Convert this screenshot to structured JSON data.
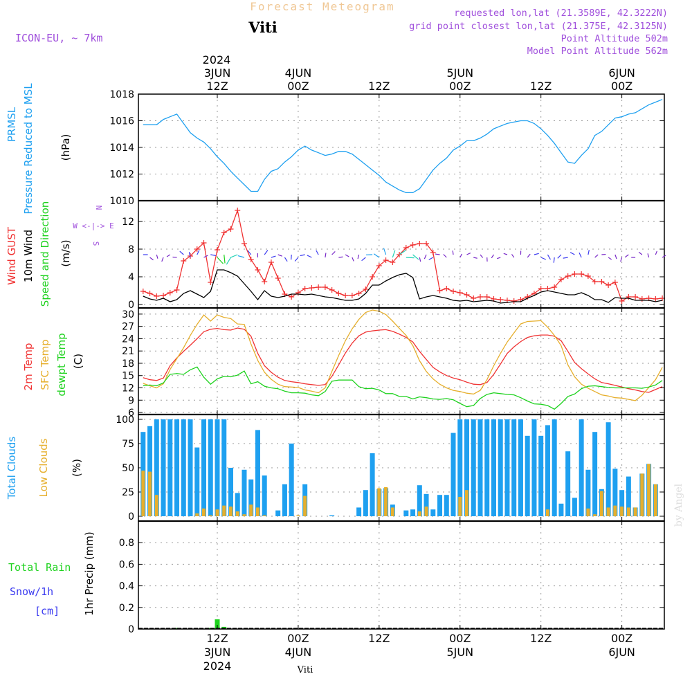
{
  "header": {
    "title": "Forecast Meteogram",
    "location": "Viti",
    "model": "ICON-EU, ~ 7km",
    "requested": "requested lon,lat (21.3589E, 42.3222N)",
    "grid_point": "grid point closest lon,lat (21.375E, 42.3125N)",
    "point_altitude": "Point Altitude 502m",
    "model_altitude": "Model Point Altitude 562m",
    "footer_location": "Viti",
    "watermark": "by Angel"
  },
  "time_axis": {
    "top_year": "2024",
    "ticks": [
      {
        "hour": 12,
        "top": [
          "3JUN",
          "12Z"
        ],
        "bottom": [
          "12Z",
          "3JUN",
          "2024"
        ]
      },
      {
        "hour": 24,
        "top": [
          "4JUN",
          "00Z"
        ],
        "bottom": [
          "00Z",
          "4JUN"
        ]
      },
      {
        "hour": 36,
        "top": [
          "12Z"
        ],
        "bottom": [
          "12Z"
        ]
      },
      {
        "hour": 48,
        "top": [
          "5JUN",
          "00Z"
        ],
        "bottom": [
          "00Z",
          "5JUN"
        ]
      },
      {
        "hour": 60,
        "top": [
          "12Z"
        ],
        "bottom": [
          "12Z"
        ]
      },
      {
        "hour": 72,
        "top": [
          "6JUN",
          "00Z"
        ],
        "bottom": [
          "00Z",
          "6JUN"
        ]
      }
    ]
  },
  "panel_labels": {
    "pressure": [
      "PRMSL",
      "Pressure Reduced to MSL",
      "(hPa)"
    ],
    "wind": [
      "Wind GUST",
      "10m Wind",
      "Speed and Direction",
      "(m/s)"
    ],
    "compass": [
      "N",
      "W <-|-> E",
      "S"
    ],
    "temp": [
      "2m Temp",
      "SFC Temp",
      "dewpt Temp",
      "(C)"
    ],
    "clouds": [
      "Total Clouds",
      "Low Clouds",
      "(%)"
    ],
    "precip": [
      "Total  Rain",
      "Snow/1h",
      "[cm]",
      "1hr Precip (mm)"
    ]
  },
  "colors": {
    "pressure": "#1EA0F0",
    "gust": "#F03232",
    "wind": "#000000",
    "temp2m": "#F03232",
    "sfc": "#E6AF2D",
    "dewpt": "#1ED21E",
    "total_clouds": "#1EA0F0",
    "low_clouds": "#E6AF2D",
    "rain": "#1ED21E",
    "snow": "#3C3CF0",
    "purple": "#A050DC",
    "title": "#F0C896"
  },
  "chart_data": [
    {
      "type": "line",
      "name": "pressure",
      "ylim": [
        1010,
        1018
      ],
      "yticks": [
        "1010",
        "1012",
        "1014",
        "1016",
        "1018"
      ],
      "x": [
        1,
        2,
        3,
        4,
        5,
        6,
        7,
        8,
        9,
        10,
        11,
        12,
        13,
        14,
        15,
        16,
        17,
        18,
        19,
        20,
        21,
        22,
        23,
        24,
        25,
        26,
        27,
        28,
        29,
        30,
        31,
        32,
        33,
        34,
        35,
        36,
        37,
        38,
        39,
        40,
        41,
        42,
        43,
        44,
        45,
        46,
        47,
        48,
        49,
        50,
        51,
        52,
        53,
        54,
        55,
        56,
        57,
        58,
        59,
        60,
        61,
        62,
        63,
        64,
        65,
        66,
        67,
        68,
        69,
        70,
        71,
        72,
        73,
        74,
        75,
        76,
        77,
        78
      ],
      "series": [
        {
          "name": "PRMSL",
          "values": [
            1015.7,
            1015.7,
            1015.7,
            1016.1,
            1016.3,
            1016.5,
            1015.8,
            1015.1,
            1014.7,
            1014.4,
            1013.9,
            1013.3,
            1012.8,
            1012.2,
            1011.7,
            1011.2,
            1010.7,
            1010.7,
            1011.6,
            1012.2,
            1012.4,
            1012.9,
            1013.3,
            1013.8,
            1014.1,
            1013.8,
            1013.6,
            1013.4,
            1013.5,
            1013.7,
            1013.7,
            1013.5,
            1013.1,
            1012.7,
            1012.3,
            1011.9,
            1011.4,
            1011.1,
            1010.8,
            1010.6,
            1010.6,
            1010.9,
            1011.6,
            1012.3,
            1012.8,
            1013.2,
            1013.8,
            1014.1,
            1014.5,
            1014.5,
            1014.7,
            1015.0,
            1015.4,
            1015.6,
            1015.8,
            1015.9,
            1016.0,
            1016.0,
            1015.8,
            1015.4,
            1014.9,
            1014.3,
            1013.6,
            1012.9,
            1012.8,
            1013.4,
            1013.9,
            1014.9,
            1015.2,
            1015.7,
            1016.2,
            1016.3,
            1016.5,
            1016.6,
            1016.9,
            1017.2,
            1017.4,
            1017.6
          ]
        }
      ]
    },
    {
      "type": "line",
      "name": "wind",
      "ylim": [
        -0.5,
        15
      ],
      "yticks": [
        "0",
        "4",
        "8",
        "12"
      ],
      "x": [
        1,
        2,
        3,
        4,
        5,
        6,
        7,
        8,
        9,
        10,
        11,
        12,
        13,
        14,
        15,
        16,
        17,
        18,
        19,
        20,
        21,
        22,
        23,
        24,
        25,
        26,
        27,
        28,
        29,
        30,
        31,
        32,
        33,
        34,
        35,
        36,
        37,
        38,
        39,
        40,
        41,
        42,
        43,
        44,
        45,
        46,
        47,
        48,
        49,
        50,
        51,
        52,
        53,
        54,
        55,
        56,
        57,
        58,
        59,
        60,
        61,
        62,
        63,
        64,
        65,
        66,
        67,
        68,
        69,
        70,
        71,
        72,
        73,
        74,
        75,
        76,
        77,
        78
      ],
      "series": [
        {
          "name": "Wind GUST",
          "values": [
            1.9,
            1.6,
            1.2,
            1.3,
            1.7,
            2.1,
            6.3,
            7.0,
            8.0,
            8.9,
            3.2,
            7.9,
            10.4,
            10.9,
            13.6,
            8.8,
            6.5,
            5.0,
            3.3,
            6.1,
            3.8,
            1.5,
            1.1,
            1.7,
            2.3,
            2.4,
            2.5,
            2.5,
            2.1,
            1.6,
            1.3,
            1.3,
            1.6,
            2.2,
            4.0,
            5.6,
            6.4,
            6.1,
            7.2,
            8.2,
            8.6,
            8.8,
            8.8,
            7.5,
            2.0,
            2.3,
            1.9,
            1.7,
            1.4,
            0.9,
            1.1,
            1.1,
            0.8,
            0.7,
            0.6,
            0.5,
            0.7,
            1.1,
            1.6,
            2.3,
            2.3,
            2.5,
            3.6,
            4.1,
            4.4,
            4.4,
            4.1,
            3.3,
            3.3,
            2.8,
            3.2,
            0.5,
            1.1,
            1.1,
            0.8,
            0.9,
            0.8,
            0.9
          ]
        },
        {
          "name": "10m Wind",
          "values": [
            1.2,
            0.8,
            0.6,
            0.9,
            0.4,
            0.7,
            1.6,
            2.0,
            1.5,
            1.0,
            1.9,
            5.0,
            5.0,
            4.6,
            4.1,
            3.0,
            1.9,
            0.7,
            2.0,
            1.2,
            1.0,
            1.2,
            1.5,
            1.5,
            1.4,
            1.5,
            1.3,
            1.1,
            1.0,
            0.8,
            0.6,
            0.6,
            0.8,
            1.6,
            2.8,
            2.8,
            3.4,
            3.9,
            4.3,
            4.5,
            3.9,
            0.8,
            1.1,
            1.3,
            1.1,
            0.9,
            0.6,
            0.5,
            0.6,
            0.4,
            0.5,
            0.6,
            0.5,
            0.2,
            0.3,
            0.4,
            0.4,
            0.9,
            1.3,
            1.8,
            2.0,
            1.8,
            1.6,
            1.4,
            1.4,
            1.7,
            1.3,
            0.7,
            0.7,
            0.3,
            1.0,
            0.9,
            0.9,
            0.6,
            0.6,
            0.6,
            0.4,
            0.6
          ]
        }
      ]
    },
    {
      "type": "line",
      "name": "temperature",
      "ylim": [
        5.5,
        31.5
      ],
      "yticks": [
        "6",
        "9",
        "12",
        "15",
        "18",
        "21",
        "24",
        "27",
        "30"
      ],
      "x": [
        1,
        2,
        3,
        4,
        5,
        6,
        7,
        8,
        9,
        10,
        11,
        12,
        13,
        14,
        15,
        16,
        17,
        18,
        19,
        20,
        21,
        22,
        23,
        24,
        25,
        26,
        27,
        28,
        29,
        30,
        31,
        32,
        33,
        34,
        35,
        36,
        37,
        38,
        39,
        40,
        41,
        42,
        43,
        44,
        45,
        46,
        47,
        48,
        49,
        50,
        51,
        52,
        53,
        54,
        55,
        56,
        57,
        58,
        59,
        60,
        61,
        62,
        63,
        64,
        65,
        66,
        67,
        68,
        69,
        70,
        71,
        72,
        73,
        74,
        75,
        76,
        77,
        78
      ],
      "series": [
        {
          "name": "2m Temp",
          "values": [
            14.5,
            14.0,
            13.8,
            14.4,
            17.4,
            19.3,
            20.9,
            22.4,
            24.0,
            25.7,
            26.3,
            26.5,
            26.2,
            26.1,
            26.6,
            26.3,
            24.6,
            20.4,
            17.4,
            15.8,
            14.6,
            13.8,
            13.5,
            13.3,
            13.0,
            12.8,
            12.6,
            12.8,
            14.8,
            17.6,
            20.5,
            22.9,
            24.7,
            25.6,
            25.9,
            26.1,
            26.2,
            25.8,
            25.1,
            24.3,
            23.2,
            20.9,
            18.9,
            17.0,
            15.9,
            15.0,
            14.4,
            14.0,
            13.4,
            12.9,
            12.8,
            13.3,
            15.3,
            17.8,
            20.4,
            22.0,
            23.3,
            24.3,
            24.7,
            24.9,
            24.9,
            24.6,
            23.5,
            20.9,
            18.2,
            16.7,
            15.4,
            14.2,
            13.3,
            13.0,
            12.6,
            12.2,
            11.8,
            11.5,
            11.1,
            10.9,
            11.6,
            12.3
          ]
        },
        {
          "name": "SFC Temp",
          "values": [
            13.1,
            12.5,
            12.0,
            13.0,
            16.5,
            19.1,
            21.8,
            24.8,
            27.5,
            29.8,
            28.3,
            29.8,
            29.2,
            28.9,
            27.6,
            27.5,
            22.7,
            18.7,
            15.8,
            14.1,
            12.9,
            12.3,
            12.2,
            12.1,
            11.5,
            11.2,
            10.8,
            12.0,
            16.0,
            19.9,
            23.5,
            26.4,
            28.7,
            30.4,
            31.0,
            30.7,
            29.9,
            28.3,
            26.5,
            24.8,
            22.3,
            18.6,
            16.0,
            14.2,
            12.9,
            12.0,
            11.4,
            11.1,
            10.7,
            10.5,
            11.4,
            14.0,
            17.4,
            20.4,
            23.2,
            25.4,
            27.6,
            28.2,
            28.3,
            28.4,
            26.8,
            24.8,
            22.3,
            17.6,
            14.7,
            12.9,
            11.9,
            11.1,
            10.3,
            10.0,
            9.6,
            9.5,
            9.2,
            8.9,
            10.2,
            12.1,
            14.0,
            17.0
          ]
        },
        {
          "name": "dewpt Temp",
          "values": [
            12.5,
            12.7,
            12.5,
            13.2,
            15.3,
            15.5,
            15.3,
            16.4,
            17.1,
            14.6,
            12.9,
            14.2,
            14.8,
            14.7,
            15.1,
            16.1,
            13.0,
            13.5,
            12.4,
            12.0,
            11.8,
            11.2,
            10.8,
            10.8,
            10.7,
            10.3,
            10.1,
            11.1,
            13.6,
            13.9,
            13.9,
            13.9,
            12.3,
            11.8,
            11.9,
            11.5,
            10.6,
            10.6,
            9.9,
            9.9,
            9.3,
            9.8,
            9.6,
            9.3,
            9.2,
            9.4,
            9.1,
            8.2,
            7.4,
            7.7,
            9.4,
            10.4,
            10.8,
            10.6,
            10.4,
            10.3,
            9.6,
            8.8,
            8.1,
            8.0,
            7.7,
            6.8,
            8.2,
            9.9,
            10.5,
            11.8,
            12.4,
            12.5,
            12.3,
            12.1,
            12.0,
            12.0,
            12.0,
            12.0,
            11.9,
            12.2,
            12.7,
            13.8
          ]
        }
      ]
    },
    {
      "type": "bar",
      "name": "clouds",
      "ylim": [
        0,
        100
      ],
      "yticks": [
        "0",
        "25",
        "50",
        "75",
        "100"
      ],
      "x": [
        1,
        2,
        3,
        4,
        5,
        6,
        7,
        8,
        9,
        10,
        11,
        12,
        13,
        14,
        15,
        16,
        17,
        18,
        19,
        20,
        21,
        22,
        23,
        24,
        25,
        26,
        27,
        28,
        29,
        30,
        31,
        32,
        33,
        34,
        35,
        36,
        37,
        38,
        39,
        40,
        41,
        42,
        43,
        44,
        45,
        46,
        47,
        48,
        49,
        50,
        51,
        52,
        53,
        54,
        55,
        56,
        57,
        58,
        59,
        60,
        61,
        62,
        63,
        64,
        65,
        66,
        67,
        68,
        69,
        70,
        71,
        72,
        73,
        74,
        75,
        76,
        77,
        78
      ],
      "series": [
        {
          "name": "Total Clouds",
          "values": [
            87,
            93,
            100,
            100,
            100,
            100,
            100,
            100,
            71,
            100,
            100,
            100,
            100,
            50,
            24,
            48,
            38,
            89,
            42,
            0,
            6,
            33,
            75,
            0,
            33,
            0,
            0,
            0,
            1,
            0,
            0,
            0,
            9,
            27,
            65,
            28,
            29,
            12,
            0,
            6,
            7,
            32,
            23,
            7,
            22,
            22,
            86,
            100,
            100,
            100,
            100,
            100,
            100,
            100,
            100,
            100,
            100,
            83,
            100,
            83,
            94,
            100,
            13,
            67,
            19,
            100,
            48,
            87,
            28,
            97,
            49,
            27,
            41,
            9,
            44,
            54,
            33,
            0
          ]
        },
        {
          "name": "Low Clouds",
          "values": [
            47,
            46,
            22,
            0,
            0,
            0,
            0,
            0,
            3,
            8,
            1,
            7,
            11,
            10,
            5,
            2,
            12,
            9,
            1,
            0,
            0,
            0,
            0,
            1,
            21,
            0,
            0,
            0,
            0,
            0,
            0,
            0,
            0,
            0,
            0,
            29,
            30,
            9,
            0,
            0,
            0,
            5,
            10,
            0,
            0,
            0,
            0,
            20,
            27,
            0,
            0,
            0,
            0,
            0,
            0,
            0,
            0,
            0,
            0,
            0,
            7,
            0,
            0,
            0,
            0,
            0,
            8,
            2,
            26,
            9,
            11,
            10,
            9,
            9,
            44,
            54,
            33,
            0
          ]
        }
      ]
    },
    {
      "type": "bar",
      "name": "precip",
      "ylim": [
        0,
        1.0
      ],
      "yticks": [
        "0",
        "0.2",
        "0.4",
        "0.6",
        "0.8"
      ],
      "x": [
        6,
        11,
        12,
        13
      ],
      "series": [
        {
          "name": "Total Rain",
          "values": [
            0.01,
            0.01,
            0.09,
            0.02
          ]
        }
      ]
    }
  ]
}
